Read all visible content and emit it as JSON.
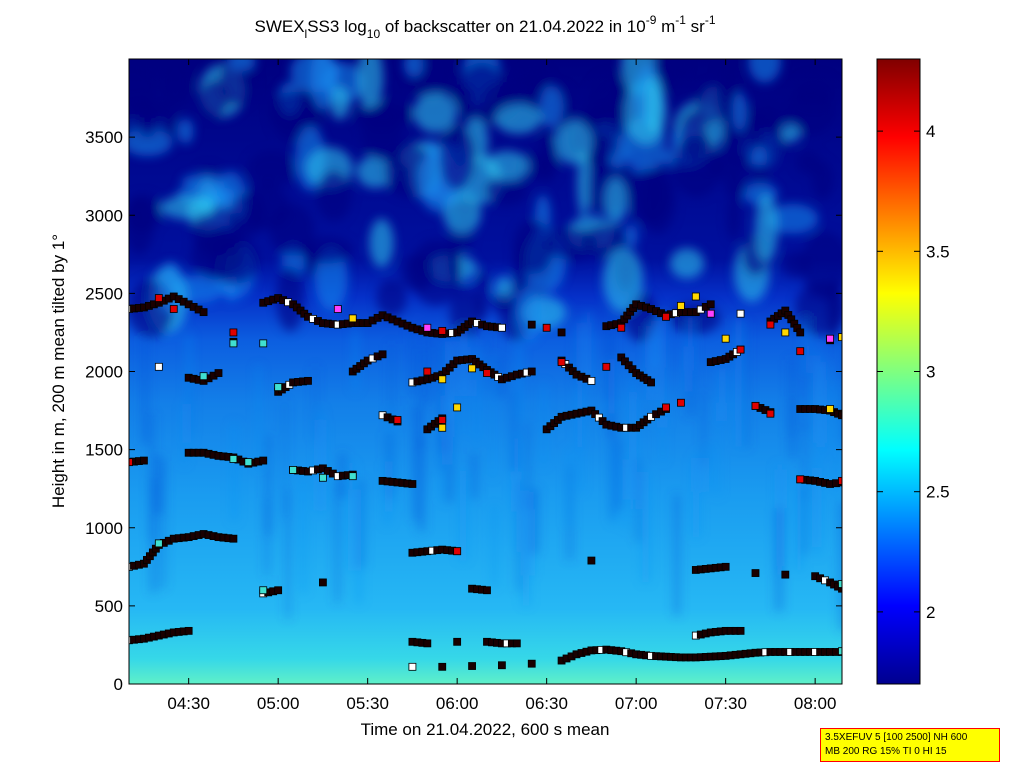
{
  "title": {
    "prefix": "SWEX",
    "sub1": "l",
    "mid": "SS3 log",
    "sub2": "10",
    "text": " of backscatter on 21.04.2022 in 10",
    "sup1": "-9",
    "unit1": " m",
    "sup2": "-1",
    "unit2": " sr",
    "sup3": "-1"
  },
  "info_box": {
    "line1": "3.5XEFUV 5 [100 2500] NH 600",
    "line2": "MB 200 RG 15% TI 0 HI 15"
  },
  "colors": {
    "marker_black": "#1a0000",
    "marker_white": "#ffffff",
    "marker_red": "#e00000",
    "marker_cyan": "#40e0d0",
    "marker_yellow": "#ffd700",
    "marker_magenta": "#ff40ff"
  },
  "chart_data": {
    "type": "heatmap",
    "xlabel": "Time on 21.04.2022, 600 s mean",
    "ylabel": "Height in m, 200 m mean tilted by 1°",
    "xlim": [
      "04:10",
      "08:09"
    ],
    "ylim": [
      0,
      4000
    ],
    "x_ticks": [
      "04:30",
      "05:00",
      "05:30",
      "06:00",
      "06:30",
      "07:00",
      "07:30",
      "08:00"
    ],
    "y_ticks": [
      0,
      500,
      1000,
      1500,
      2000,
      2500,
      3000,
      3500
    ],
    "colorbar": {
      "range": [
        1.7,
        4.3
      ],
      "ticks": [
        2,
        2.5,
        3,
        3.5,
        4
      ],
      "colormap": "jet"
    },
    "series": [
      {
        "name": "layer-top",
        "points": [
          [
            "04:10",
            2400
          ],
          [
            "04:15",
            2410
          ],
          [
            "04:20",
            2440
          ],
          [
            "04:25",
            2480
          ],
          [
            "04:30",
            2430
          ],
          [
            "04:35",
            2380
          ],
          [
            "04:55",
            2440
          ],
          [
            "05:00",
            2470
          ],
          [
            "05:05",
            2430
          ],
          [
            "05:10",
            2350
          ],
          [
            "05:15",
            2310
          ],
          [
            "05:20",
            2300
          ],
          [
            "05:25",
            2310
          ],
          [
            "05:30",
            2310
          ],
          [
            "05:35",
            2360
          ],
          [
            "05:40",
            2320
          ],
          [
            "05:45",
            2280
          ],
          [
            "05:50",
            2250
          ],
          [
            "05:55",
            2240
          ],
          [
            "06:00",
            2250
          ],
          [
            "06:05",
            2320
          ],
          [
            "06:10",
            2290
          ],
          [
            "06:15",
            2280
          ],
          [
            "06:25",
            2300
          ],
          [
            "06:35",
            2250
          ],
          [
            "06:50",
            2290
          ],
          [
            "06:55",
            2310
          ],
          [
            "07:00",
            2430
          ],
          [
            "07:05",
            2400
          ],
          [
            "07:10",
            2360
          ],
          [
            "07:15",
            2380
          ],
          [
            "07:20",
            2380
          ],
          [
            "07:25",
            2430
          ],
          [
            "07:35",
            2370
          ],
          [
            "07:45",
            2320
          ],
          [
            "07:50",
            2390
          ],
          [
            "07:55",
            2250
          ],
          [
            "08:05",
            2200
          ]
        ]
      },
      {
        "name": "layer-2000",
        "points": [
          [
            "04:20",
            2030
          ],
          [
            "04:30",
            1960
          ],
          [
            "04:35",
            1940
          ],
          [
            "04:40",
            1990
          ],
          [
            "04:45",
            2190
          ],
          [
            "05:00",
            1870
          ],
          [
            "05:05",
            1930
          ],
          [
            "05:10",
            1940
          ],
          [
            "05:25",
            2000
          ],
          [
            "05:30",
            2070
          ],
          [
            "05:35",
            2110
          ],
          [
            "05:45",
            1930
          ],
          [
            "05:50",
            1950
          ],
          [
            "05:55",
            1980
          ],
          [
            "06:00",
            2070
          ],
          [
            "06:05",
            2080
          ],
          [
            "06:10",
            2010
          ],
          [
            "06:15",
            1950
          ],
          [
            "06:20",
            1980
          ],
          [
            "06:25",
            2000
          ],
          [
            "06:35",
            2070
          ],
          [
            "06:40",
            1980
          ],
          [
            "06:45",
            1940
          ],
          [
            "06:55",
            2090
          ],
          [
            "07:00",
            1990
          ],
          [
            "07:05",
            1930
          ],
          [
            "07:25",
            2060
          ],
          [
            "07:30",
            2080
          ],
          [
            "07:35",
            2140
          ]
        ]
      },
      {
        "name": "layer-1700",
        "points": [
          [
            "05:35",
            1720
          ],
          [
            "05:40",
            1680
          ],
          [
            "05:50",
            1630
          ],
          [
            "05:55",
            1700
          ],
          [
            "06:30",
            1630
          ],
          [
            "06:35",
            1710
          ],
          [
            "06:40",
            1730
          ],
          [
            "06:45",
            1750
          ],
          [
            "06:50",
            1660
          ],
          [
            "06:55",
            1640
          ],
          [
            "07:00",
            1640
          ],
          [
            "07:05",
            1710
          ],
          [
            "07:10",
            1760
          ],
          [
            "07:40",
            1780
          ],
          [
            "07:45",
            1740
          ],
          [
            "07:55",
            1760
          ],
          [
            "08:00",
            1760
          ],
          [
            "08:05",
            1750
          ],
          [
            "08:09",
            1720
          ]
        ]
      },
      {
        "name": "layer-1400",
        "points": [
          [
            "04:10",
            1420
          ],
          [
            "04:15",
            1430
          ],
          [
            "04:30",
            1480
          ],
          [
            "04:35",
            1480
          ],
          [
            "04:40",
            1460
          ],
          [
            "04:45",
            1450
          ],
          [
            "04:50",
            1410
          ],
          [
            "04:55",
            1430
          ],
          [
            "05:05",
            1370
          ],
          [
            "05:10",
            1360
          ],
          [
            "05:15",
            1380
          ],
          [
            "05:20",
            1330
          ],
          [
            "05:25",
            1340
          ],
          [
            "05:35",
            1300
          ],
          [
            "05:40",
            1290
          ],
          [
            "05:45",
            1280
          ],
          [
            "07:55",
            1310
          ],
          [
            "08:00",
            1300
          ],
          [
            "08:05",
            1280
          ],
          [
            "08:09",
            1290
          ]
        ]
      },
      {
        "name": "layer-900",
        "points": [
          [
            "04:10",
            750
          ],
          [
            "04:15",
            770
          ],
          [
            "04:20",
            890
          ],
          [
            "04:25",
            930
          ],
          [
            "04:30",
            940
          ],
          [
            "04:35",
            960
          ],
          [
            "04:40",
            940
          ],
          [
            "04:45",
            930
          ],
          [
            "05:45",
            840
          ],
          [
            "05:50",
            850
          ],
          [
            "05:55",
            860
          ],
          [
            "06:00",
            850
          ],
          [
            "06:45",
            790
          ],
          [
            "07:20",
            730
          ],
          [
            "07:25",
            740
          ],
          [
            "07:30",
            750
          ],
          [
            "07:40",
            710
          ],
          [
            "07:50",
            700
          ],
          [
            "08:00",
            690
          ],
          [
            "08:05",
            650
          ],
          [
            "08:09",
            610
          ]
        ]
      },
      {
        "name": "layer-600",
        "points": [
          [
            "04:55",
            580
          ],
          [
            "05:00",
            600
          ],
          [
            "05:15",
            650
          ],
          [
            "06:05",
            610
          ],
          [
            "06:10",
            600
          ]
        ]
      },
      {
        "name": "layer-300",
        "points": [
          [
            "04:10",
            280
          ],
          [
            "04:15",
            290
          ],
          [
            "04:20",
            310
          ],
          [
            "04:25",
            330
          ],
          [
            "04:30",
            340
          ],
          [
            "05:45",
            270
          ],
          [
            "05:50",
            260
          ],
          [
            "06:00",
            270
          ],
          [
            "06:10",
            270
          ],
          [
            "06:15",
            260
          ],
          [
            "06:20",
            260
          ],
          [
            "07:20",
            310
          ],
          [
            "07:25",
            330
          ],
          [
            "07:30",
            340
          ],
          [
            "07:35",
            340
          ]
        ]
      },
      {
        "name": "layer-base",
        "points": [
          [
            "05:45",
            110
          ],
          [
            "05:55",
            110
          ],
          [
            "06:05",
            115
          ],
          [
            "06:15",
            120
          ],
          [
            "06:25",
            130
          ],
          [
            "06:35",
            150
          ],
          [
            "06:40",
            190
          ],
          [
            "06:45",
            215
          ],
          [
            "06:50",
            220
          ],
          [
            "06:55",
            210
          ],
          [
            "07:00",
            190
          ],
          [
            "07:05",
            180
          ],
          [
            "07:10",
            175
          ],
          [
            "07:15",
            170
          ],
          [
            "07:20",
            170
          ],
          [
            "07:25",
            175
          ],
          [
            "07:30",
            180
          ],
          [
            "07:35",
            190
          ],
          [
            "07:40",
            200
          ],
          [
            "07:45",
            205
          ],
          [
            "07:50",
            205
          ],
          [
            "07:55",
            205
          ],
          [
            "08:00",
            205
          ],
          [
            "08:05",
            205
          ],
          [
            "08:09",
            205
          ]
        ]
      },
      {
        "name": "colored-markers",
        "points": [
          [
            "04:20",
            2470,
            "red"
          ],
          [
            "04:25",
            2400,
            "red"
          ],
          [
            "04:10",
            1420,
            "red"
          ],
          [
            "04:45",
            2250,
            "red"
          ],
          [
            "04:45",
            2180,
            "cyan"
          ],
          [
            "04:55",
            2180,
            "cyan"
          ],
          [
            "05:00",
            1900,
            "cyan"
          ],
          [
            "04:35",
            1970,
            "cyan"
          ],
          [
            "05:05",
            1370,
            "cyan"
          ],
          [
            "05:15",
            1320,
            "cyan"
          ],
          [
            "05:25",
            1330,
            "cyan"
          ],
          [
            "04:20",
            900,
            "cyan"
          ],
          [
            "04:55",
            600,
            "cyan"
          ],
          [
            "05:20",
            2400,
            "magenta"
          ],
          [
            "05:25",
            2340,
            "yellow"
          ],
          [
            "05:50",
            2280,
            "magenta"
          ],
          [
            "05:55",
            2260,
            "red"
          ],
          [
            "05:40",
            1690,
            "red"
          ],
          [
            "05:55",
            1640,
            "yellow"
          ],
          [
            "06:00",
            1770,
            "yellow"
          ],
          [
            "05:55",
            1690,
            "red"
          ],
          [
            "05:50",
            2000,
            "red"
          ],
          [
            "05:55",
            1950,
            "yellow"
          ],
          [
            "06:05",
            2020,
            "yellow"
          ],
          [
            "06:10",
            1990,
            "red"
          ],
          [
            "06:00",
            850,
            "red"
          ],
          [
            "06:30",
            2280,
            "red"
          ],
          [
            "06:35",
            2060,
            "red"
          ],
          [
            "06:55",
            2280,
            "red"
          ],
          [
            "06:50",
            2030,
            "red"
          ],
          [
            "07:10",
            2350,
            "red"
          ],
          [
            "07:15",
            2420,
            "yellow"
          ],
          [
            "07:20",
            2480,
            "yellow"
          ],
          [
            "07:25",
            2370,
            "magenta"
          ],
          [
            "07:30",
            2210,
            "yellow"
          ],
          [
            "07:35",
            2140,
            "red"
          ],
          [
            "07:45",
            2300,
            "red"
          ],
          [
            "07:50",
            2250,
            "yellow"
          ],
          [
            "07:55",
            2130,
            "red"
          ],
          [
            "08:05",
            2210,
            "magenta"
          ],
          [
            "08:09",
            2220,
            "yellow"
          ],
          [
            "07:40",
            1780,
            "red"
          ],
          [
            "07:45",
            1730,
            "red"
          ],
          [
            "07:55",
            1310,
            "red"
          ],
          [
            "08:09",
            1300,
            "red"
          ],
          [
            "08:05",
            1760,
            "yellow"
          ],
          [
            "08:09",
            640,
            "cyan"
          ],
          [
            "08:09",
            210,
            "cyan"
          ],
          [
            "07:15",
            1800,
            "red"
          ],
          [
            "04:45",
            1440,
            "cyan"
          ],
          [
            "04:50",
            1420,
            "cyan"
          ],
          [
            "07:10",
            1770,
            "red"
          ]
        ]
      }
    ]
  }
}
